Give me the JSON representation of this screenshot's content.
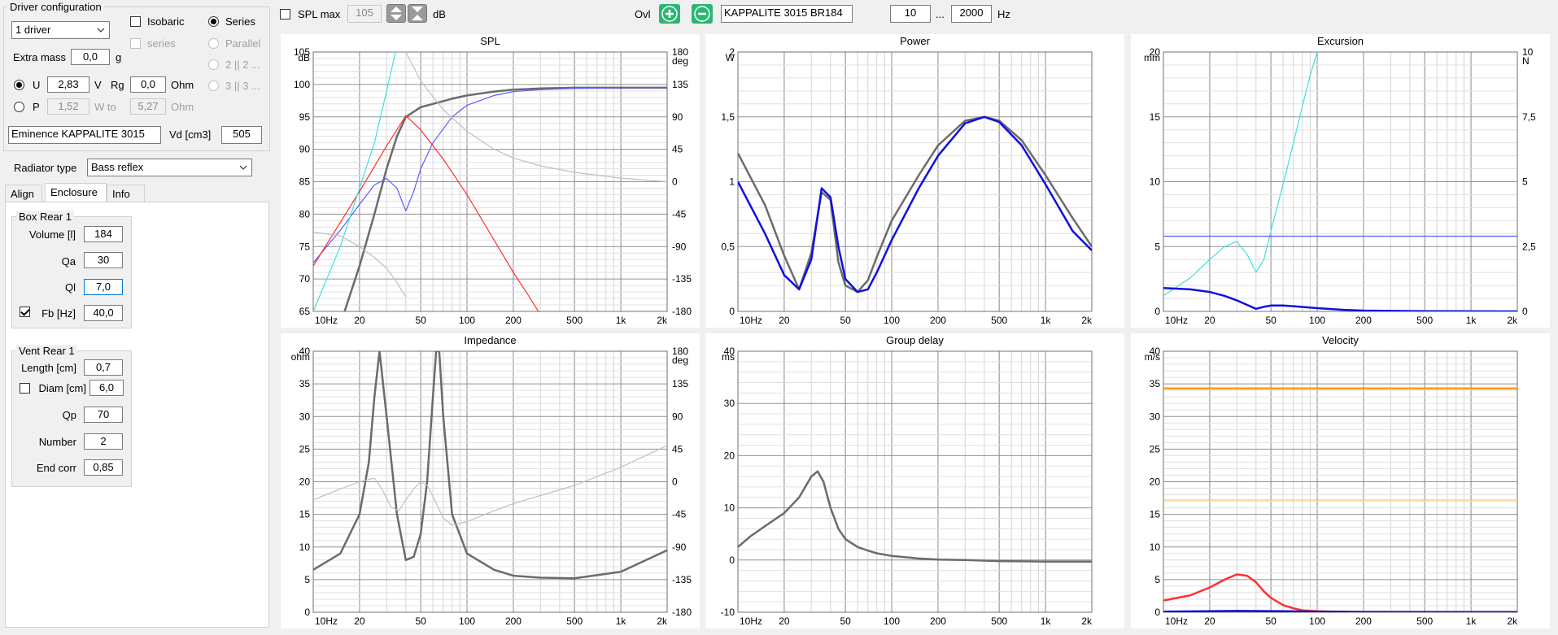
{
  "driver_config": {
    "title": "Driver configuration",
    "driver_count": "1 driver",
    "isobaric": "Isobaric",
    "series_chk": "series",
    "series_radio": "Series",
    "parallel": "Parallel",
    "opt_2_2": "2 || 2 ...",
    "opt_3_3": "3 || 3 ...",
    "extra_mass_label": "Extra mass",
    "extra_mass": "0,0",
    "extra_mass_unit": "g",
    "u_label": "U",
    "u_value": "2,83",
    "u_unit": "V",
    "rg_label": "Rg",
    "rg_value": "0,0",
    "rg_unit": "Ohm",
    "p_label": "P",
    "p_value": "1,52",
    "w_to": "W to",
    "w_to_value": "5,27",
    "w_unit": "Ohm",
    "driver_name": "Eminence KAPPALITE 3015",
    "vd_label": "Vd [cm3]",
    "vd_value": "505"
  },
  "radiator": {
    "label": "Radiator type",
    "value": "Bass reflex"
  },
  "tabs": [
    "Align",
    "Enclosure",
    "Info"
  ],
  "box": {
    "title": "Box Rear 1",
    "volume_label": "Volume [l]",
    "volume": "184",
    "qa_label": "Qa",
    "qa": "30",
    "ql_label": "Ql",
    "ql": "7,0",
    "fb_label": "Fb [Hz]",
    "fb": "40,0"
  },
  "vent": {
    "title": "Vent Rear 1",
    "length_label": "Length [cm]",
    "length": "0,7",
    "diam_label": "Diam [cm]",
    "diam": "6,0",
    "qp_label": "Qp",
    "qp": "70",
    "number_label": "Number",
    "number": "2",
    "endcorr_label": "End corr",
    "endcorr": "0,85"
  },
  "toolbar": {
    "spl_max_label": "SPL max",
    "spl_max_value": "105",
    "db_unit": "dB",
    "ovl_label": "Ovl",
    "project_name": "KAPPALITE 3015 BR184",
    "freq_min": "10",
    "freq_sep": "...",
    "freq_max": "2000",
    "hz_unit": "Hz"
  },
  "colors": {
    "dark_gray": "#6b6b6b",
    "blue": "#1010e0",
    "light_blue": "#5a5aff",
    "red": "#ff3030",
    "cyan": "#40e0e0",
    "light_gray": "#c0c0c0",
    "orange": "#ff9900",
    "light_orange": "#ffcc66",
    "add_green": "#2bb673"
  },
  "chart_data": [
    {
      "type": "line",
      "title": "SPL",
      "x_scale": "log",
      "xlim": [
        10,
        2000
      ],
      "ylim": [
        65,
        105
      ],
      "y2lim": [
        -180,
        180
      ],
      "y_unit": "dB",
      "y2_unit": "deg",
      "x_ticks": [
        "10Hz",
        "20",
        "50",
        "100",
        "200",
        "500",
        "1k",
        "2k"
      ],
      "y_ticks": [
        "105",
        "100",
        "95",
        "90",
        "85",
        "80",
        "75",
        "70",
        "65"
      ],
      "y2_ticks": [
        "180",
        "135",
        "90",
        "45",
        "0",
        "-45",
        "-90",
        "-135",
        "-180"
      ],
      "series": [
        {
          "color": "dark_gray",
          "axis": "y",
          "x": [
            10,
            15,
            20,
            25,
            30,
            35,
            40,
            50,
            60,
            80,
            100,
            150,
            200,
            300,
            500,
            1000,
            2000
          ],
          "y": [
            52,
            63,
            72,
            80,
            87,
            92,
            95,
            96.5,
            97,
            97.8,
            98.3,
            98.9,
            99.2,
            99.4,
            99.5,
            99.5,
            99.5
          ]
        },
        {
          "color": "light_blue",
          "axis": "y",
          "x": [
            10,
            15,
            20,
            25,
            30,
            35,
            40,
            45,
            50,
            60,
            80,
            100,
            150,
            200,
            300,
            500,
            1000,
            2000
          ],
          "y": [
            72.5,
            77.5,
            81.5,
            84.5,
            85.5,
            84,
            80.5,
            83.5,
            87,
            91,
            95,
            96.8,
            98.3,
            98.9,
            99.2,
            99.4,
            99.5,
            99.5
          ]
        },
        {
          "color": "red",
          "axis": "y",
          "x": [
            10,
            20,
            30,
            40,
            50,
            70,
            100,
            150,
            200,
            250,
            300
          ],
          "y": [
            72,
            83.5,
            90.5,
            95.2,
            93,
            88.5,
            83,
            76,
            71,
            67.5,
            64.5
          ]
        },
        {
          "color": "cyan",
          "axis": "y",
          "x": [
            10,
            15,
            20,
            25,
            30,
            35
          ],
          "y": [
            65,
            75,
            84,
            91,
            99,
            106
          ]
        },
        {
          "color": "light_gray",
          "axis": "y2",
          "x": [
            40,
            50,
            70,
            100,
            150,
            200,
            300,
            500,
            1000,
            2000
          ],
          "y": [
            180,
            140,
            100,
            70,
            45,
            33,
            22,
            13,
            5,
            0
          ]
        },
        {
          "color": "light_gray",
          "axis": "y2",
          "x": [
            10,
            15,
            20,
            25,
            30,
            35,
            40
          ],
          "y": [
            -70,
            -75,
            -90,
            -105,
            -120,
            -140,
            -160
          ]
        }
      ]
    },
    {
      "type": "line",
      "title": "Power",
      "x_scale": "log",
      "xlim": [
        10,
        2000
      ],
      "ylim": [
        0,
        2
      ],
      "y_unit": "W",
      "x_ticks": [
        "10Hz",
        "20",
        "50",
        "100",
        "200",
        "500",
        "1k",
        "2k"
      ],
      "y_ticks": [
        "2",
        "1,5",
        "1",
        "0,5",
        "0"
      ],
      "series": [
        {
          "color": "dark_gray",
          "x": [
            10,
            15,
            20,
            25,
            30,
            35,
            40,
            45,
            50,
            60,
            70,
            80,
            100,
            150,
            200,
            300,
            400,
            500,
            700,
            1000,
            1500,
            2000
          ],
          "y": [
            1.22,
            0.82,
            0.43,
            0.17,
            0.45,
            0.92,
            0.86,
            0.38,
            0.2,
            0.15,
            0.24,
            0.42,
            0.7,
            1.05,
            1.28,
            1.47,
            1.5,
            1.47,
            1.32,
            1.05,
            0.72,
            0.5
          ]
        },
        {
          "color": "blue",
          "x": [
            10,
            15,
            20,
            25,
            30,
            35,
            40,
            45,
            50,
            60,
            70,
            80,
            100,
            150,
            200,
            300,
            400,
            500,
            700,
            1000,
            1500,
            2000
          ],
          "y": [
            1.0,
            0.6,
            0.28,
            0.17,
            0.4,
            0.95,
            0.88,
            0.5,
            0.25,
            0.15,
            0.17,
            0.3,
            0.55,
            0.95,
            1.2,
            1.45,
            1.5,
            1.46,
            1.28,
            0.98,
            0.62,
            0.47
          ]
        }
      ]
    },
    {
      "type": "line",
      "title": "Excursion",
      "x_scale": "log",
      "xlim": [
        10,
        2000
      ],
      "ylim": [
        0,
        20
      ],
      "y2lim": [
        0,
        10
      ],
      "y_unit": "mm",
      "y2_unit": "N",
      "x_ticks": [
        "10Hz",
        "20",
        "50",
        "100",
        "200",
        "500",
        "1k",
        "2k"
      ],
      "y_ticks": [
        "20",
        "15",
        "10",
        "5",
        "0"
      ],
      "y2_ticks": [
        "10",
        "7,5",
        "5",
        "2,5",
        "0"
      ],
      "series": [
        {
          "color": "cyan",
          "axis": "y",
          "x": [
            10,
            15,
            20,
            25,
            30,
            35,
            40,
            45,
            50,
            60,
            70,
            80,
            90,
            100
          ],
          "y": [
            1.2,
            2.6,
            4.0,
            5.0,
            5.4,
            4.4,
            3.0,
            4.0,
            6.2,
            9.8,
            13.0,
            15.8,
            18.2,
            20.0
          ]
        },
        {
          "color": "light_blue",
          "axis": "y",
          "x": [
            10,
            2000
          ],
          "y": [
            5.8,
            5.8
          ]
        },
        {
          "color": "blue",
          "axis": "y",
          "x": [
            10,
            15,
            20,
            25,
            30,
            35,
            40,
            45,
            50,
            60,
            70,
            100,
            150,
            200,
            500,
            2000
          ],
          "y": [
            1.8,
            1.7,
            1.5,
            1.2,
            0.85,
            0.5,
            0.2,
            0.35,
            0.45,
            0.45,
            0.4,
            0.25,
            0.12,
            0.06,
            0.02,
            0
          ]
        }
      ]
    },
    {
      "type": "line",
      "title": "Impedance",
      "x_scale": "log",
      "xlim": [
        10,
        2000
      ],
      "ylim": [
        0,
        40
      ],
      "y2lim": [
        -180,
        180
      ],
      "y_unit": "ohm",
      "y2_unit": "deg",
      "x_ticks": [
        "10Hz",
        "20",
        "50",
        "100",
        "200",
        "500",
        "1k",
        "2k"
      ],
      "y_ticks": [
        "40",
        "35",
        "30",
        "25",
        "20",
        "15",
        "10",
        "5",
        "0"
      ],
      "y2_ticks": [
        "180",
        "135",
        "90",
        "45",
        "0",
        "-45",
        "-90",
        "-135",
        "-180"
      ],
      "series": [
        {
          "color": "dark_gray",
          "axis": "y",
          "x": [
            10,
            15,
            20,
            23,
            25,
            27,
            30,
            35,
            40,
            45,
            50,
            55,
            60,
            63,
            66,
            70,
            80,
            100,
            150,
            200,
            300,
            500,
            1000,
            2000
          ],
          "y": [
            6.5,
            9,
            15,
            23,
            33,
            40,
            30,
            15,
            8,
            8.5,
            12,
            20,
            33,
            40,
            40,
            30,
            15,
            9,
            6.5,
            5.6,
            5.3,
            5.2,
            6.2,
            9.5
          ]
        },
        {
          "color": "light_gray",
          "axis": "y2",
          "x": [
            10,
            15,
            20,
            25,
            28,
            32,
            36,
            40,
            45,
            50,
            55,
            60,
            70,
            80,
            100,
            150,
            200,
            500,
            1000,
            2000
          ],
          "y": [
            -25,
            -10,
            0,
            5,
            -10,
            -35,
            -40,
            -25,
            -10,
            0,
            -5,
            -20,
            -50,
            -60,
            -55,
            -40,
            -30,
            -5,
            20,
            50
          ]
        }
      ]
    },
    {
      "type": "line",
      "title": "Group delay",
      "x_scale": "log",
      "xlim": [
        10,
        2000
      ],
      "ylim": [
        -10,
        40
      ],
      "y_unit": "ms",
      "x_ticks": [
        "10Hz",
        "20",
        "50",
        "100",
        "200",
        "500",
        "1k",
        "2k"
      ],
      "y_ticks": [
        "40",
        "30",
        "20",
        "10",
        "0",
        "-10"
      ],
      "series": [
        {
          "color": "dark_gray",
          "x": [
            10,
            12,
            15,
            20,
            25,
            30,
            33,
            36,
            40,
            45,
            50,
            60,
            70,
            80,
            100,
            150,
            200,
            300,
            500,
            1000,
            2000
          ],
          "y": [
            2.5,
            4.5,
            6.5,
            9,
            12,
            16,
            17,
            15,
            10,
            6,
            4,
            2.5,
            1.8,
            1.3,
            0.8,
            0.3,
            0.1,
            0,
            -0.2,
            -0.3,
            -0.3
          ]
        }
      ]
    },
    {
      "type": "line",
      "title": "Velocity",
      "x_scale": "log",
      "xlim": [
        10,
        2000
      ],
      "ylim": [
        0,
        40
      ],
      "y_unit": "m/s",
      "x_ticks": [
        "10Hz",
        "20",
        "50",
        "100",
        "200",
        "500",
        "1k",
        "2k"
      ],
      "y_ticks": [
        "40",
        "35",
        "30",
        "25",
        "20",
        "15",
        "10",
        "5",
        "0"
      ],
      "series": [
        {
          "color": "orange",
          "x": [
            10,
            2000
          ],
          "y": [
            34.3,
            34.3
          ]
        },
        {
          "color": "light_orange",
          "x": [
            10,
            2000
          ],
          "y": [
            17.2,
            17.2
          ]
        },
        {
          "color": "red",
          "x": [
            10,
            15,
            20,
            25,
            30,
            35,
            40,
            45,
            50,
            60,
            70,
            80,
            100,
            150,
            200,
            500,
            2000
          ],
          "y": [
            1.8,
            2.6,
            3.8,
            5.0,
            5.8,
            5.6,
            4.6,
            3.2,
            2.2,
            1.1,
            0.6,
            0.3,
            0.15,
            0.05,
            0,
            0,
            0
          ]
        },
        {
          "color": "blue",
          "x": [
            10,
            30,
            60,
            100,
            200,
            2000
          ],
          "y": [
            0.1,
            0.2,
            0.15,
            0.1,
            0.05,
            0.02
          ]
        }
      ]
    }
  ]
}
